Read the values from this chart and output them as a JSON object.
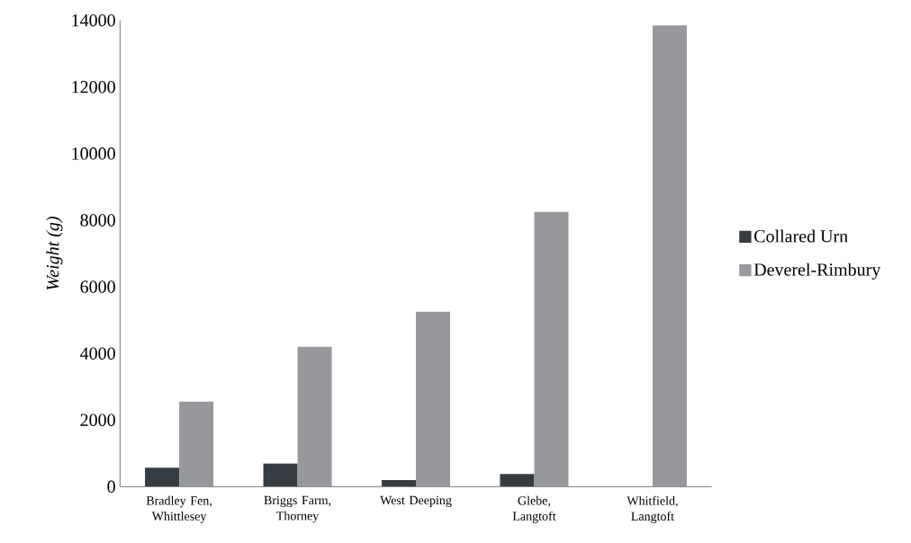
{
  "chart_data": {
    "type": "bar",
    "ylabel": "Weight (g)",
    "categories": [
      "Bradley Fen, Whittlesey",
      "Briggs Farm, Thorney",
      "West Deeping",
      "Glebe, Langtoft",
      "Whitfield, Langtoft"
    ],
    "series": [
      {
        "name": "Collared Urn",
        "color": "#363d42",
        "values": [
          570,
          700,
          200,
          380,
          null
        ]
      },
      {
        "name": "Deverel-Rimbury",
        "color": "#96989c",
        "values": [
          2550,
          4200,
          5250,
          8250,
          13850
        ]
      }
    ],
    "ylim": [
      0,
      14000
    ],
    "yticks": [
      0,
      2000,
      4000,
      6000,
      8000,
      10000,
      12000,
      14000
    ],
    "legend": "right",
    "grid": false
  }
}
